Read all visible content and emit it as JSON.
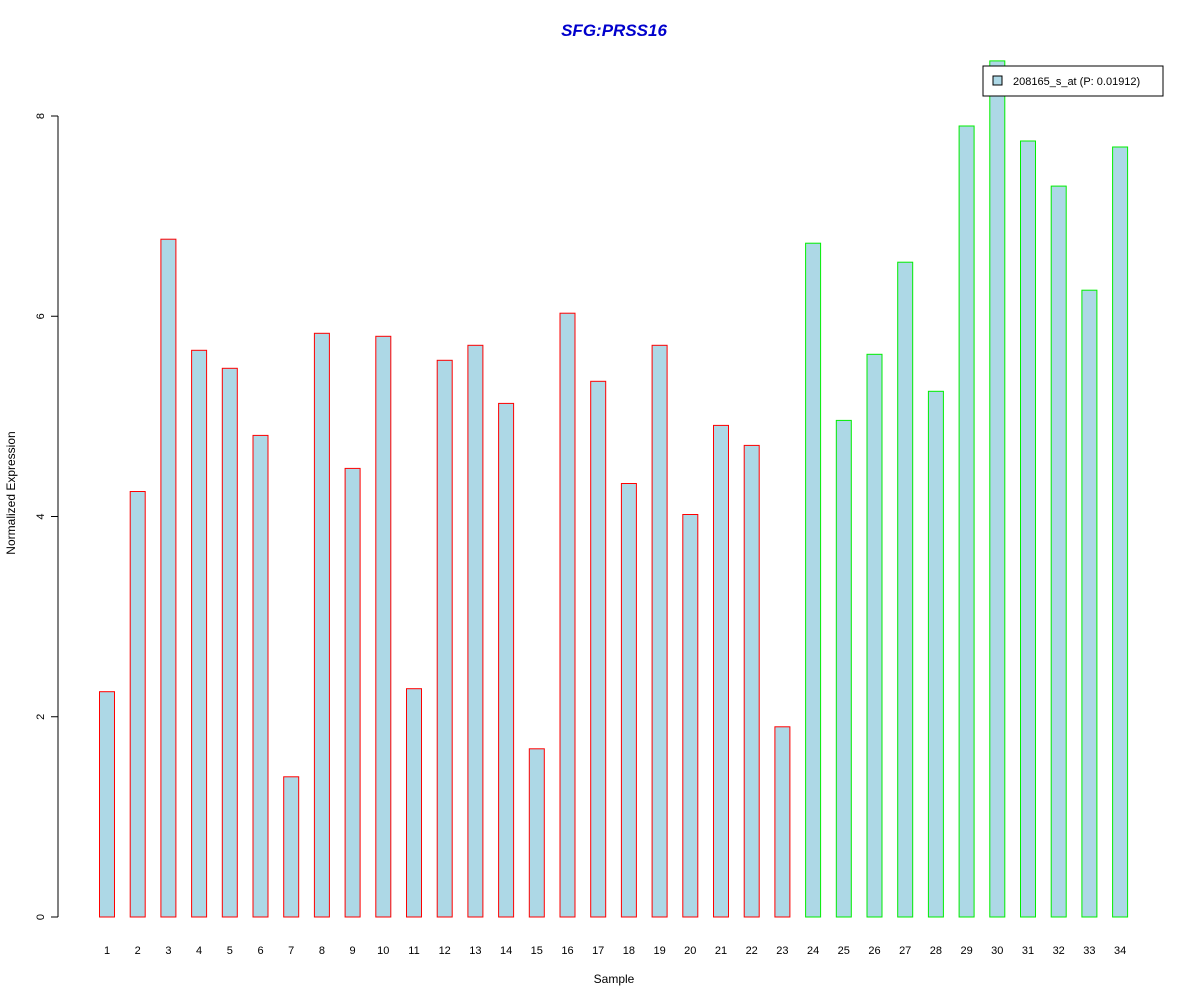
{
  "chart_data": {
    "type": "bar",
    "title": "SFG:PRSS16",
    "xlabel": "Sample",
    "ylabel": "Normalized Expression",
    "categories": [
      "1",
      "2",
      "3",
      "4",
      "5",
      "6",
      "7",
      "8",
      "9",
      "10",
      "11",
      "12",
      "13",
      "14",
      "15",
      "16",
      "17",
      "18",
      "19",
      "20",
      "21",
      "22",
      "23",
      "24",
      "25",
      "26",
      "27",
      "28",
      "29",
      "30",
      "31",
      "32",
      "33",
      "34"
    ],
    "series": [
      {
        "name": "208165_s_at (P: 0.01912)",
        "values": [
          2.25,
          4.25,
          6.77,
          5.66,
          5.48,
          4.81,
          1.4,
          5.83,
          4.48,
          5.8,
          2.28,
          5.56,
          5.71,
          5.13,
          1.68,
          6.03,
          5.35,
          4.33,
          5.71,
          4.02,
          4.91,
          4.71,
          1.9,
          6.73,
          4.96,
          5.62,
          6.54,
          5.25,
          7.9,
          8.55,
          7.75,
          7.3,
          6.26,
          7.69
        ]
      }
    ],
    "groups": [
      {
        "from": 1,
        "to": 23,
        "border_color": "#ff0000"
      },
      {
        "from": 24,
        "to": 34,
        "border_color": "#00ee00"
      }
    ],
    "ylim": [
      0,
      8
    ],
    "yticks": [
      0,
      2,
      4,
      6,
      8
    ],
    "grid": false,
    "legend_position": "top-right",
    "colors": {
      "bar_fill": "#add8e6",
      "title": "#0000cc",
      "axis": "#000000"
    }
  }
}
